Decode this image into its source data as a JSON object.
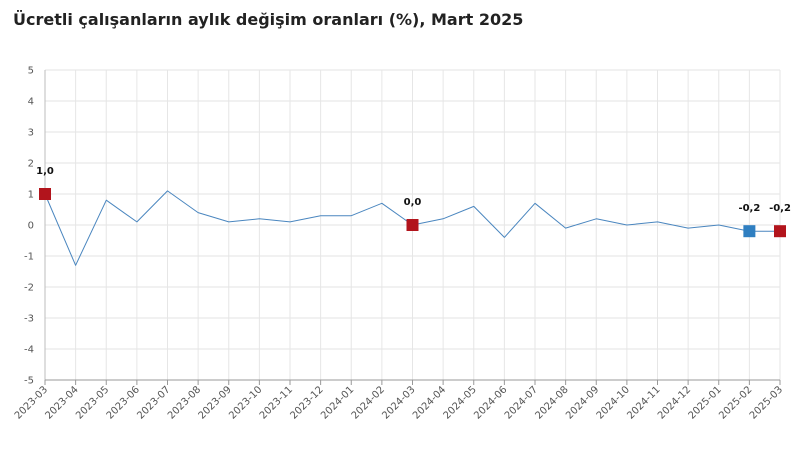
{
  "chart_data": {
    "type": "line",
    "title": "Ücretli çalışanların aylık değişim oranları (%), Mart 2025",
    "xlabel": "",
    "ylabel": "",
    "ylim": [
      -5,
      5
    ],
    "yticks": [
      "5",
      "4",
      "3",
      "2",
      "1",
      "0",
      "-1",
      "-2",
      "-3",
      "-4",
      "-5"
    ],
    "grid": true,
    "categories": [
      "2023-03",
      "2023-04",
      "2023-05",
      "2023-06",
      "2023-07",
      "2023-08",
      "2023-09",
      "2023-10",
      "2023-11",
      "2023-12",
      "2024-01",
      "2024-02",
      "2024-03",
      "2024-04",
      "2024-05",
      "2024-06",
      "2024-07",
      "2024-08",
      "2024-09",
      "2024-10",
      "2024-11",
      "2024-12",
      "2025-01",
      "2025-02",
      "2025-03"
    ],
    "series": [
      {
        "name": "",
        "values": [
          1.0,
          -1.3,
          0.8,
          0.1,
          1.1,
          0.4,
          0.1,
          0.2,
          0.1,
          0.3,
          0.3,
          0.7,
          0.0,
          0.2,
          0.6,
          -0.4,
          0.7,
          -0.1,
          0.2,
          0.0,
          0.1,
          -0.1,
          0.0,
          -0.2,
          -0.2
        ]
      }
    ],
    "line_color": "#4a86bf",
    "highlights": [
      {
        "category": "2023-03",
        "label": "1,0",
        "color": "#b2141c"
      },
      {
        "category": "2024-03",
        "label": "0,0",
        "color": "#b2141c"
      },
      {
        "category": "2025-02",
        "label": "-0,2",
        "color": "#2f7fc1"
      },
      {
        "category": "2025-03",
        "label": "-0,2",
        "color": "#b2141c"
      }
    ]
  }
}
